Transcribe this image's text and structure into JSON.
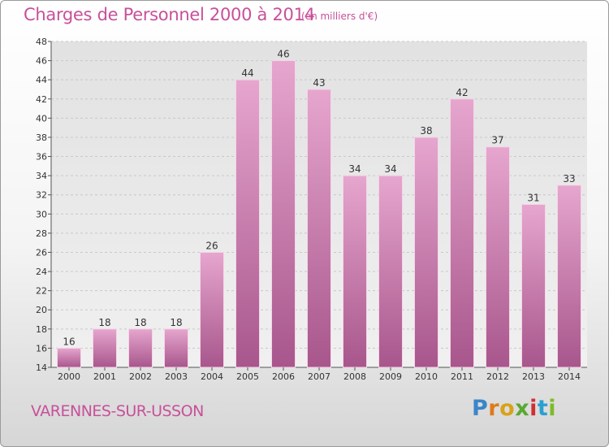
{
  "header": {
    "title": "Charges de Personnel 2000 à 2014",
    "subtitle": "(en milliers d'€)"
  },
  "footer": {
    "location": "VARENNES-SUR-USSON",
    "logo": {
      "p": "P",
      "r": "r",
      "o": "o",
      "x": "x",
      "i1": "i",
      "t": "t",
      "i2": "i"
    }
  },
  "colors": {
    "accent": "#c8509a",
    "bar_light": "#e6a6ce",
    "bar_dark": "#a8568c",
    "grid": "#c8c8c8"
  },
  "chart_data": {
    "type": "bar",
    "title": "Charges de Personnel 2000 à 2014",
    "subtitle": "(en milliers d'€)",
    "categories": [
      "2000",
      "2001",
      "2002",
      "2003",
      "2004",
      "2005",
      "2006",
      "2007",
      "2008",
      "2009",
      "2010",
      "2011",
      "2012",
      "2013",
      "2014"
    ],
    "values": [
      16,
      18,
      18,
      18,
      26,
      44,
      46,
      43,
      34,
      34,
      38,
      42,
      37,
      31,
      33
    ],
    "ylim": [
      14,
      48
    ],
    "yticks": [
      14,
      16,
      18,
      20,
      22,
      24,
      26,
      28,
      30,
      32,
      34,
      36,
      38,
      40,
      42,
      44,
      46,
      48
    ],
    "xlabel": "",
    "ylabel": "",
    "grid": "horizontal-dashed",
    "data_labels": true
  }
}
